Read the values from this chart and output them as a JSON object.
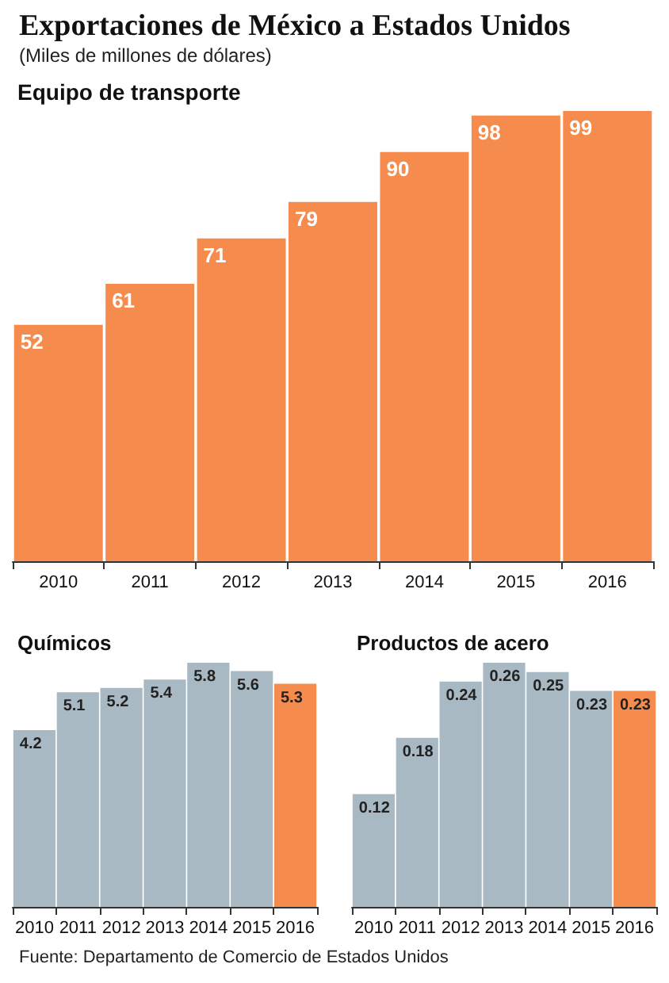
{
  "chart_data": [
    {
      "type": "other",
      "title": "Exportaciones de México a Estados Unidos",
      "subtitle": "(Miles de millones de dólares)"
    },
    {
      "type": "bar",
      "title": "Equipo de transporte",
      "categories": [
        "2010",
        "2011",
        "2012",
        "2013",
        "2014",
        "2015",
        "2016"
      ],
      "values": [
        52,
        61,
        71,
        79,
        90,
        98,
        99
      ],
      "colors": [
        "#f58b4c",
        "#f58b4c",
        "#f58b4c",
        "#f58b4c",
        "#f58b4c",
        "#f58b4c",
        "#f58b4c"
      ],
      "data_labels": true
    },
    {
      "type": "bar",
      "title": "Químicos",
      "categories": [
        "2010",
        "2011",
        "2012",
        "2013",
        "2014",
        "2015",
        "2016"
      ],
      "values": [
        4.2,
        5.1,
        5.2,
        5.4,
        5.8,
        5.6,
        5.3
      ],
      "colors": [
        "#a9b9c3",
        "#a9b9c3",
        "#a9b9c3",
        "#a9b9c3",
        "#a9b9c3",
        "#a9b9c3",
        "#f58b4c"
      ],
      "data_labels": true
    },
    {
      "type": "bar",
      "title": "Productos de acero",
      "categories": [
        "2010",
        "2011",
        "2012",
        "2013",
        "2014",
        "2015",
        "2016"
      ],
      "values": [
        0.12,
        0.18,
        0.24,
        0.26,
        0.25,
        0.23,
        0.23
      ],
      "colors": [
        "#a9b9c3",
        "#a9b9c3",
        "#a9b9c3",
        "#a9b9c3",
        "#a9b9c3",
        "#a9b9c3",
        "#f58b4c"
      ],
      "data_labels": true
    },
    {
      "type": "other",
      "annotations": [
        "Fuente: Departamento de Comercio de Estados Unidos"
      ]
    }
  ]
}
